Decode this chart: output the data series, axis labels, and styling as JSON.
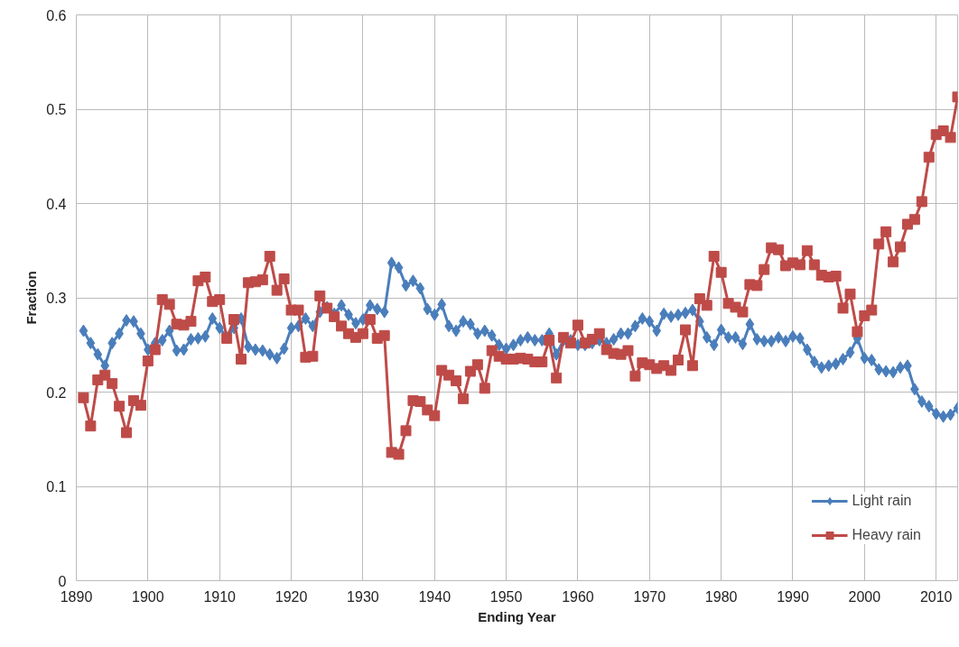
{
  "chart_data": {
    "type": "line",
    "xlabel": "Ending Year",
    "ylabel": "Fraction",
    "x": [
      1891,
      1892,
      1893,
      1894,
      1895,
      1896,
      1897,
      1898,
      1899,
      1900,
      1901,
      1902,
      1903,
      1904,
      1905,
      1906,
      1907,
      1908,
      1909,
      1910,
      1911,
      1912,
      1913,
      1914,
      1915,
      1916,
      1917,
      1918,
      1919,
      1920,
      1921,
      1922,
      1923,
      1924,
      1925,
      1926,
      1927,
      1928,
      1929,
      1930,
      1931,
      1932,
      1933,
      1934,
      1935,
      1936,
      1937,
      1938,
      1939,
      1940,
      1941,
      1942,
      1943,
      1944,
      1945,
      1946,
      1947,
      1948,
      1949,
      1950,
      1951,
      1952,
      1953,
      1954,
      1955,
      1956,
      1957,
      1958,
      1959,
      1960,
      1961,
      1962,
      1963,
      1964,
      1965,
      1966,
      1967,
      1968,
      1969,
      1970,
      1971,
      1972,
      1973,
      1974,
      1975,
      1976,
      1977,
      1978,
      1979,
      1980,
      1981,
      1982,
      1983,
      1984,
      1985,
      1986,
      1987,
      1988,
      1989,
      1990,
      1991,
      1992,
      1993,
      1994,
      1995,
      1996,
      1997,
      1998,
      1999,
      2000,
      2001,
      2002,
      2003,
      2004,
      2005,
      2006,
      2007,
      2008,
      2009,
      2010,
      2011,
      2012,
      2013
    ],
    "series": [
      {
        "name": "Light rain",
        "color": "#4a7ebb",
        "marker": "diamond",
        "values": [
          0.265,
          0.252,
          0.24,
          0.228,
          0.252,
          0.262,
          0.276,
          0.275,
          0.262,
          0.245,
          0.252,
          0.255,
          0.265,
          0.244,
          0.245,
          0.256,
          0.257,
          0.259,
          0.278,
          0.268,
          0.258,
          0.268,
          0.278,
          0.248,
          0.245,
          0.244,
          0.24,
          0.236,
          0.246,
          0.268,
          0.27,
          0.278,
          0.27,
          0.285,
          0.29,
          0.283,
          0.292,
          0.282,
          0.273,
          0.277,
          0.292,
          0.288,
          0.285,
          0.337,
          0.332,
          0.313,
          0.318,
          0.31,
          0.288,
          0.282,
          0.293,
          0.27,
          0.265,
          0.275,
          0.272,
          0.262,
          0.265,
          0.26,
          0.25,
          0.246,
          0.25,
          0.255,
          0.258,
          0.255,
          0.255,
          0.262,
          0.24,
          0.255,
          0.255,
          0.25,
          0.25,
          0.252,
          0.255,
          0.252,
          0.256,
          0.262,
          0.262,
          0.27,
          0.278,
          0.275,
          0.265,
          0.283,
          0.28,
          0.282,
          0.284,
          0.287,
          0.275,
          0.258,
          0.25,
          0.266,
          0.258,
          0.258,
          0.251,
          0.272,
          0.256,
          0.254,
          0.254,
          0.258,
          0.254,
          0.259,
          0.257,
          0.245,
          0.232,
          0.226,
          0.228,
          0.23,
          0.235,
          0.242,
          0.257,
          0.236,
          0.234,
          0.224,
          0.222,
          0.221,
          0.226,
          0.228,
          0.203,
          0.19,
          0.185,
          0.177,
          0.174,
          0.176,
          0.183
        ]
      },
      {
        "name": "Heavy rain",
        "color": "#be4b48",
        "marker": "square",
        "values": [
          0.194,
          0.164,
          0.213,
          0.218,
          0.209,
          0.185,
          0.157,
          0.191,
          0.186,
          0.233,
          0.245,
          0.298,
          0.293,
          0.272,
          0.271,
          0.275,
          0.318,
          0.322,
          0.296,
          0.298,
          0.257,
          0.277,
          0.235,
          0.316,
          0.317,
          0.319,
          0.344,
          0.308,
          0.32,
          0.287,
          0.287,
          0.237,
          0.238,
          0.302,
          0.289,
          0.28,
          0.27,
          0.262,
          0.258,
          0.262,
          0.277,
          0.257,
          0.26,
          0.136,
          0.134,
          0.159,
          0.191,
          0.19,
          0.181,
          0.175,
          0.223,
          0.218,
          0.212,
          0.193,
          0.222,
          0.229,
          0.204,
          0.244,
          0.238,
          0.235,
          0.235,
          0.236,
          0.235,
          0.232,
          0.232,
          0.255,
          0.215,
          0.258,
          0.252,
          0.271,
          0.252,
          0.256,
          0.262,
          0.245,
          0.241,
          0.24,
          0.244,
          0.217,
          0.231,
          0.229,
          0.225,
          0.228,
          0.223,
          0.234,
          0.266,
          0.228,
          0.299,
          0.292,
          0.344,
          0.327,
          0.294,
          0.29,
          0.285,
          0.314,
          0.313,
          0.33,
          0.353,
          0.351,
          0.334,
          0.337,
          0.335,
          0.35,
          0.335,
          0.324,
          0.322,
          0.323,
          0.289,
          0.304,
          0.264,
          0.281,
          0.287,
          0.357,
          0.37,
          0.338,
          0.354,
          0.378,
          0.383,
          0.402,
          0.449,
          0.473,
          0.477,
          0.47,
          0.513
        ]
      }
    ],
    "xlim": [
      1890,
      2013
    ],
    "ylim": [
      0,
      0.6
    ],
    "xticks": [
      1890,
      1900,
      1910,
      1920,
      1930,
      1940,
      1950,
      1960,
      1970,
      1980,
      1990,
      2000,
      2010
    ],
    "yticks": [
      0,
      0.1,
      0.2,
      0.3,
      0.4,
      0.5,
      0.6
    ],
    "grid": true,
    "legend": "bottom right",
    "line_style": "solid"
  }
}
